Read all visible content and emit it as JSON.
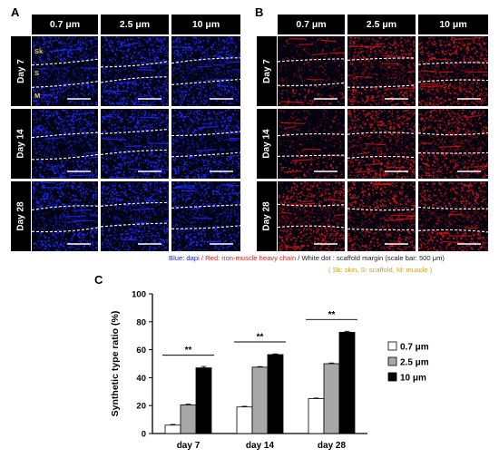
{
  "panel_a": {
    "letter": "A",
    "columns": [
      "0.7 μm",
      "2.5 μm",
      "10 μm"
    ],
    "rows": [
      "Day 7",
      "Day 14",
      "Day 28"
    ],
    "tissue_labels": [
      "Sk",
      "S",
      "M"
    ],
    "stain_color": "#1a2bff"
  },
  "panel_b": {
    "letter": "B",
    "columns": [
      "0.7 μm",
      "2.5 μm",
      "10 μm"
    ],
    "rows": [
      "Day 7",
      "Day 14",
      "Day 28"
    ],
    "stain_color": "#d01818"
  },
  "legend": {
    "blue_text": "Blue: dapi",
    "sep1": " / ",
    "red_text": "Red: non-muscle heavy chain",
    "sep2": " / ",
    "white_text": "White dot : scaffold margin (scale bar: 500 μm)",
    "abbrev": "( Sk: skin, S: scaffold, M: muscle )",
    "colors": {
      "blue": "#1a1aff",
      "red": "#e02020",
      "black": "#222222",
      "gold": "#d4a017"
    }
  },
  "panel_c": {
    "letter": "C"
  },
  "chart_data": {
    "type": "bar",
    "categories": [
      "day 7",
      "day 14",
      "day 28"
    ],
    "series": [
      {
        "name": "0.7 μm",
        "values": [
          6,
          19,
          25
        ],
        "errors": [
          0.5,
          0.5,
          0.4
        ],
        "color": "#ffffff"
      },
      {
        "name": "2.5 μm",
        "values": [
          20.5,
          47.5,
          50
        ],
        "errors": [
          0.5,
          0.4,
          0.5
        ],
        "color": "#a8a8a8"
      },
      {
        "name": "10 μm",
        "values": [
          47,
          56.5,
          72.5
        ],
        "errors": [
          1,
          0.5,
          0.7
        ],
        "color": "#000000"
      }
    ],
    "ylabel": "Synthetic type ratio (%)",
    "xlabel": "",
    "ylim": [
      0,
      100
    ],
    "yticks": [
      0,
      20,
      40,
      60,
      80,
      100
    ],
    "significance": [
      "**",
      "**",
      "**"
    ],
    "legend_position": "right"
  }
}
